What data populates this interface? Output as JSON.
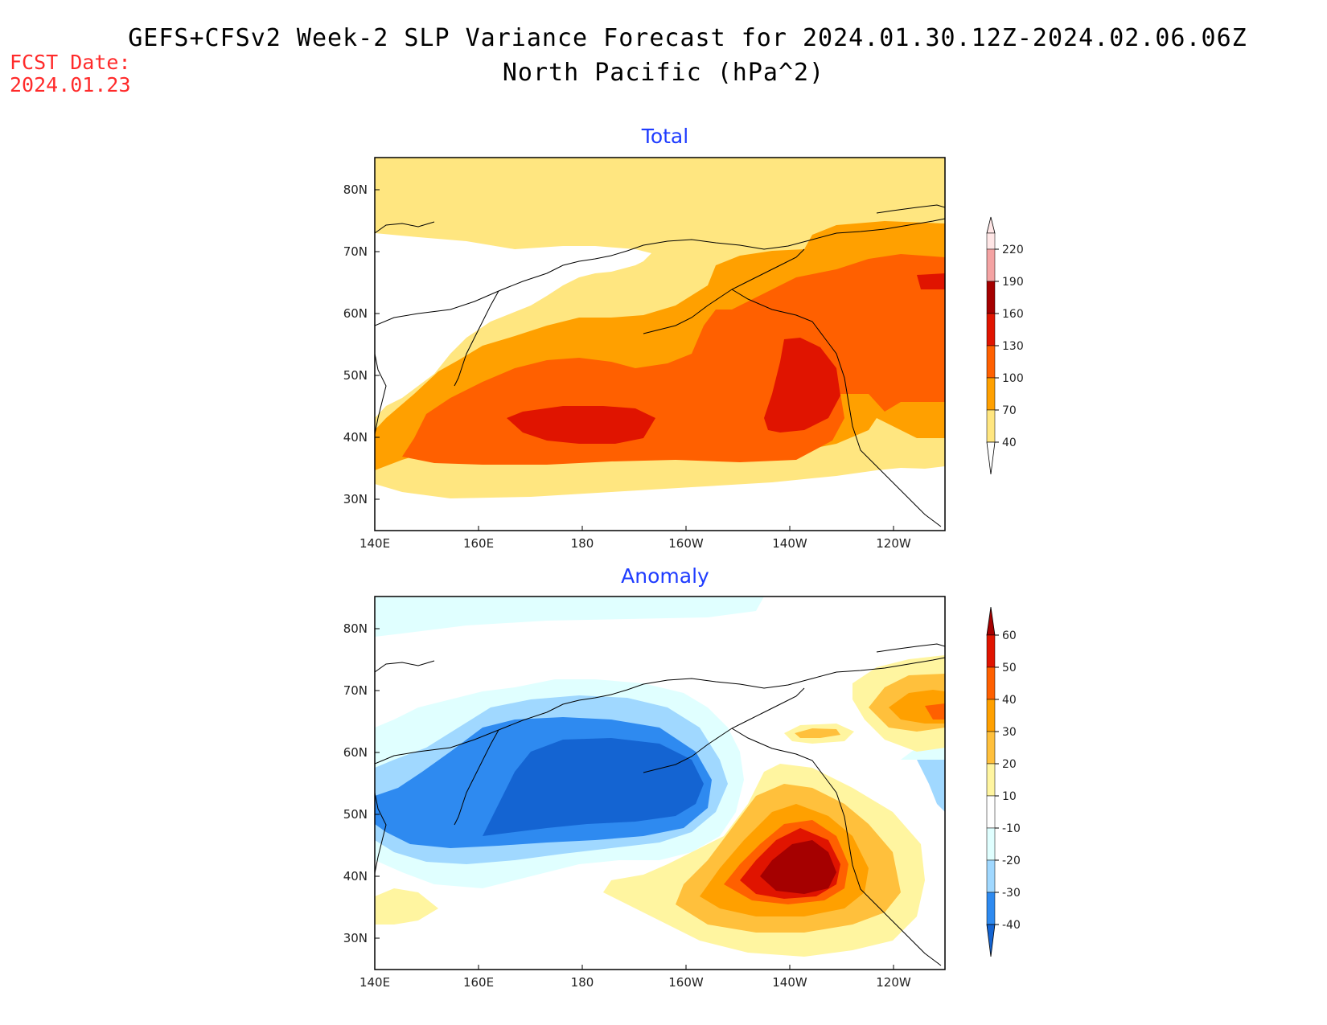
{
  "header": {
    "title_line1": "GEFS+CFSv2 Week-2 SLP Variance Forecast for 2024.01.30.12Z-2024.02.06.06Z",
    "title_line2": "North Pacific (hPa^2)",
    "fcst_label": "FCST Date:",
    "fcst_date": "2024.01.23"
  },
  "axes": {
    "lat_labels": [
      "80N",
      "70N",
      "60N",
      "50N",
      "40N",
      "30N"
    ],
    "lon_labels": [
      "140E",
      "160E",
      "180",
      "160W",
      "140W",
      "120W"
    ]
  },
  "panels": [
    {
      "title": "Total",
      "colorbar": {
        "labels": [
          "220",
          "190",
          "160",
          "130",
          "100",
          "70",
          "40"
        ],
        "colors": [
          "#ffe6e6",
          "#f4a3a3",
          "#a50000",
          "#e01400",
          "#ff6000",
          "#ffa000",
          "#ffe680"
        ]
      }
    },
    {
      "title": "Anomaly",
      "colorbar": {
        "labels": [
          "60",
          "50",
          "40",
          "30",
          "20",
          "10",
          "-10",
          "-20",
          "-30",
          "-40"
        ],
        "colors": [
          "#a50000",
          "#e01400",
          "#ff6000",
          "#ffa000",
          "#ffc03c",
          "#fff5a0",
          "#ffffff",
          "#e0ffff",
          "#a0d8ff",
          "#2e8af0",
          "#1464d2"
        ]
      }
    }
  ],
  "colors": {
    "title_text": "#000000",
    "fcst_text": "#ff2a2a",
    "panel_title": "#1f3cff"
  }
}
